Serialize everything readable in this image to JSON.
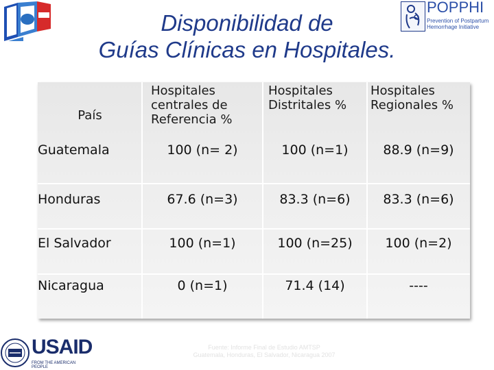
{
  "title": {
    "line1": "Disponibilidad de",
    "line2": "Guías Clínicas en Hospitales."
  },
  "logo_right": {
    "name": "POPPHI",
    "subtitle_line1": "Prevention of Postpartum",
    "subtitle_line2": "Hemorrhage Initiative"
  },
  "table": {
    "headers": [
      "País",
      "Hospitales centrales de Referencia %",
      "Hospitales Distritales %",
      "Hospitales Regionales %"
    ],
    "header_lines": [
      [
        "País"
      ],
      [
        "Hospitales",
        "centrales  de",
        "Referencia %"
      ],
      [
        "Hospitales",
        "Distritales %"
      ],
      [
        "Hospitales",
        "Regionales %"
      ]
    ],
    "rows": [
      {
        "country": "Guatemala",
        "central": "100 (n= 2)",
        "district": "100 (n=1)",
        "regional": "88.9 (n=9)"
      },
      {
        "country": "Honduras",
        "central": "67.6 (n=3)",
        "district": "83.3 (n=6)",
        "regional": "83.3 (n=6)"
      },
      {
        "country": "El Salvador",
        "central": "100 (n=1)",
        "district": "100 (n=25)",
        "regional": "100 (n=2)"
      },
      {
        "country": "Nicaragua",
        "central": "0 (n=1)",
        "district": "71.4 (14)",
        "regional": "----"
      }
    ]
  },
  "source": {
    "line1": "Fuente: Informe Final de Estudio AMTSP",
    "line2": "Guatemala, Honduras, El Salvador, Nicaragua 2007"
  },
  "usaid": {
    "name": "USAID",
    "tagline": "FROM THE AMERICAN PEOPLE"
  }
}
